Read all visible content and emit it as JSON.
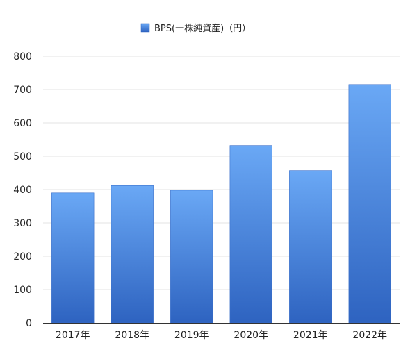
{
  "chart_data": {
    "type": "bar",
    "categories": [
      "2017年",
      "2018年",
      "2019年",
      "2020年",
      "2021年",
      "2022年"
    ],
    "series": [
      {
        "name": "BPS(一株純資産)（円）",
        "values": [
          390,
          412,
          398,
          532,
          457,
          715
        ]
      }
    ],
    "title": "",
    "xlabel": "",
    "ylabel": "",
    "ylim": [
      0,
      800
    ],
    "yticks": [
      0,
      100,
      200,
      300,
      400,
      500,
      600,
      700,
      800
    ],
    "grid": true,
    "legend": "top-center",
    "colors": {
      "bar_top": "#6aa8f5",
      "bar_bottom": "#2e63c0",
      "grid": "#e3e3e3",
      "axis": "#333333"
    }
  }
}
